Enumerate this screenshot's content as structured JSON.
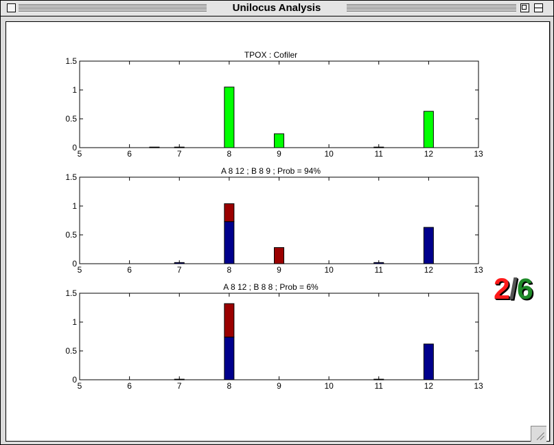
{
  "window": {
    "title": "Unilocus Analysis"
  },
  "score": {
    "numerator": "2",
    "separator": "/",
    "denominator": "6"
  },
  "colors": {
    "green": "#00ff00",
    "red": "#9a0000",
    "blue": "#00008c"
  },
  "chart_data": [
    {
      "type": "bar",
      "title": "TPOX : Cofiler",
      "xlim": [
        5,
        13
      ],
      "ylim": [
        0,
        1.5
      ],
      "xticks": [
        "5",
        "6",
        "7",
        "8",
        "9",
        "10",
        "11",
        "12",
        "13"
      ],
      "yticks": [
        "0",
        "0.5",
        "1",
        "1.5"
      ],
      "series": [
        {
          "color": "green",
          "stacked": false,
          "points": [
            [
              6.5,
              0.01
            ],
            [
              7,
              0.01
            ],
            [
              8,
              1.05
            ],
            [
              9,
              0.24
            ],
            [
              11,
              0.01
            ],
            [
              12,
              0.63
            ]
          ]
        }
      ]
    },
    {
      "type": "bar",
      "title": "A 8  12 ; B 8  9 ; Prob = 94%",
      "xlim": [
        5,
        13
      ],
      "ylim": [
        0,
        1.5
      ],
      "xticks": [
        "5",
        "6",
        "7",
        "8",
        "9",
        "10",
        "11",
        "12",
        "13"
      ],
      "yticks": [
        "0",
        "0.5",
        "1",
        "1.5"
      ],
      "series": [
        {
          "color": "blue",
          "stacked": true,
          "points": [
            [
              7,
              0.02
            ],
            [
              8,
              0.73
            ],
            [
              11,
              0.02
            ],
            [
              12,
              0.63
            ]
          ]
        },
        {
          "color": "red",
          "stacked": true,
          "points": [
            [
              8,
              0.31
            ],
            [
              9,
              0.28
            ]
          ]
        }
      ]
    },
    {
      "type": "bar",
      "title": "A 8  12 ; B 8  8 ; Prob = 6%",
      "xlim": [
        5,
        13
      ],
      "ylim": [
        0,
        1.5
      ],
      "xticks": [
        "5",
        "6",
        "7",
        "8",
        "9",
        "10",
        "11",
        "12",
        "13"
      ],
      "yticks": [
        "0",
        "0.5",
        "1",
        "1.5"
      ],
      "series": [
        {
          "color": "blue",
          "stacked": true,
          "points": [
            [
              7,
              0.01
            ],
            [
              8,
              0.74
            ],
            [
              11,
              0.01
            ],
            [
              12,
              0.62
            ]
          ]
        },
        {
          "color": "red",
          "stacked": true,
          "points": [
            [
              8,
              0.58
            ]
          ]
        }
      ]
    }
  ]
}
